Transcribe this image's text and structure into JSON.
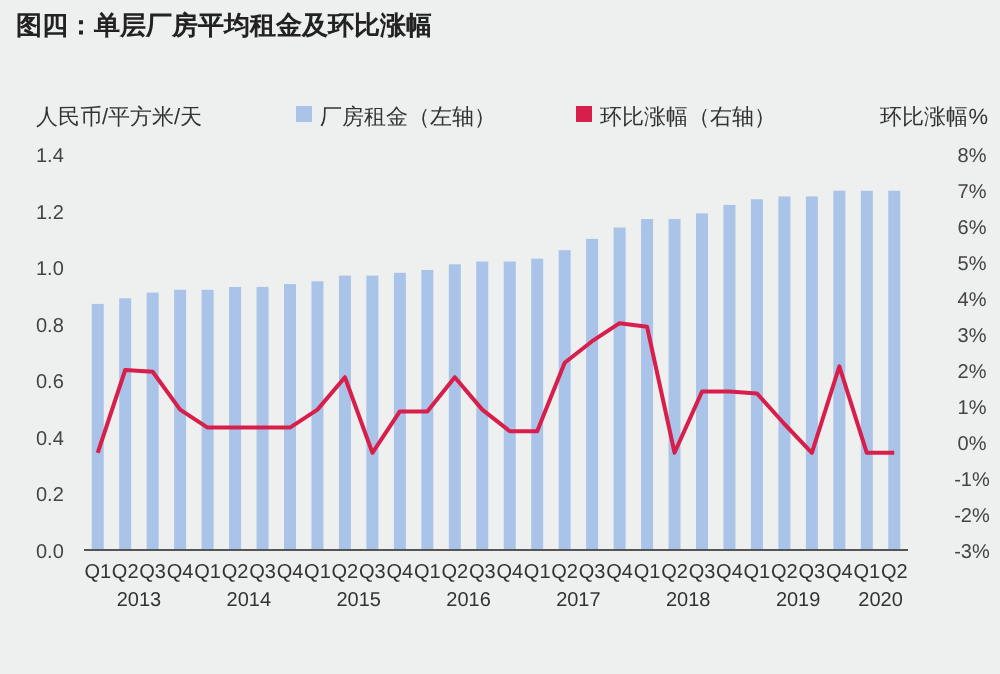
{
  "chart_data": {
    "type": "bar",
    "title": "图四：单层厂房平均租金及环比涨幅",
    "ylabel": "人民币/平方米/天",
    "y2label": "环比涨幅%",
    "categories": [
      "Q1",
      "Q2",
      "Q3",
      "Q4",
      "Q1",
      "Q2",
      "Q3",
      "Q4",
      "Q1",
      "Q2",
      "Q3",
      "Q4",
      "Q1",
      "Q2",
      "Q3",
      "Q4",
      "Q1",
      "Q2",
      "Q3",
      "Q4",
      "Q1",
      "Q2",
      "Q3",
      "Q4",
      "Q1",
      "Q2",
      "Q3",
      "Q4",
      "Q1",
      "Q2"
    ],
    "annotations": [
      "2013",
      "2014",
      "2015",
      "2016",
      "2017",
      "2018",
      "2019",
      "2020"
    ],
    "series": [
      {
        "name": "厂房租金（左轴）",
        "color": "#a9c4e8",
        "values": [
          0.87,
          0.89,
          0.91,
          0.92,
          0.92,
          0.93,
          0.93,
          0.94,
          0.95,
          0.97,
          0.97,
          0.98,
          0.99,
          1.01,
          1.02,
          1.02,
          1.03,
          1.06,
          1.1,
          1.14,
          1.17,
          1.17,
          1.19,
          1.22,
          1.24,
          1.25,
          1.25,
          1.27,
          1.27,
          1.27
        ]
      },
      {
        "name": "环比涨幅（右轴）",
        "type": "line",
        "axis": "y2",
        "color": "#d81e4a",
        "values": [
          -0.3,
          2.0,
          1.95,
          0.9,
          0.4,
          0.4,
          0.4,
          0.4,
          0.9,
          1.8,
          -0.3,
          0.85,
          0.85,
          1.8,
          0.9,
          0.3,
          0.3,
          2.2,
          2.8,
          3.3,
          3.2,
          -0.3,
          1.4,
          1.4,
          1.35,
          0.5,
          -0.3,
          2.1,
          -0.3,
          -0.3
        ]
      }
    ],
    "ylim": [
      0,
      1.4
    ],
    "yticks": [
      {
        "value": 0,
        "label": "0.0"
      },
      {
        "value": 0.2,
        "label": "0.2"
      },
      {
        "value": 0.4,
        "label": "0.4"
      },
      {
        "value": 0.6,
        "label": "0.6"
      },
      {
        "value": 0.8,
        "label": "0.8"
      },
      {
        "value": 1,
        "label": "1.0"
      },
      {
        "value": 1.2,
        "label": "1.2"
      },
      {
        "value": 1.4,
        "label": "1.4"
      }
    ],
    "y2lim": [
      -3,
      8
    ],
    "y2ticks": [
      {
        "value": -3,
        "label": "-3%"
      },
      {
        "value": -2,
        "label": "-2%"
      },
      {
        "value": -1,
        "label": "-1%"
      },
      {
        "value": 0,
        "label": "0%"
      },
      {
        "value": 1,
        "label": "1%"
      },
      {
        "value": 2,
        "label": "2%"
      },
      {
        "value": 3,
        "label": "3%"
      },
      {
        "value": 4,
        "label": "4%"
      },
      {
        "value": 5,
        "label": "5%"
      },
      {
        "value": 6,
        "label": "6%"
      },
      {
        "value": 7,
        "label": "7%"
      },
      {
        "value": 8,
        "label": "8%"
      }
    ],
    "legend": "top",
    "grid": false
  }
}
